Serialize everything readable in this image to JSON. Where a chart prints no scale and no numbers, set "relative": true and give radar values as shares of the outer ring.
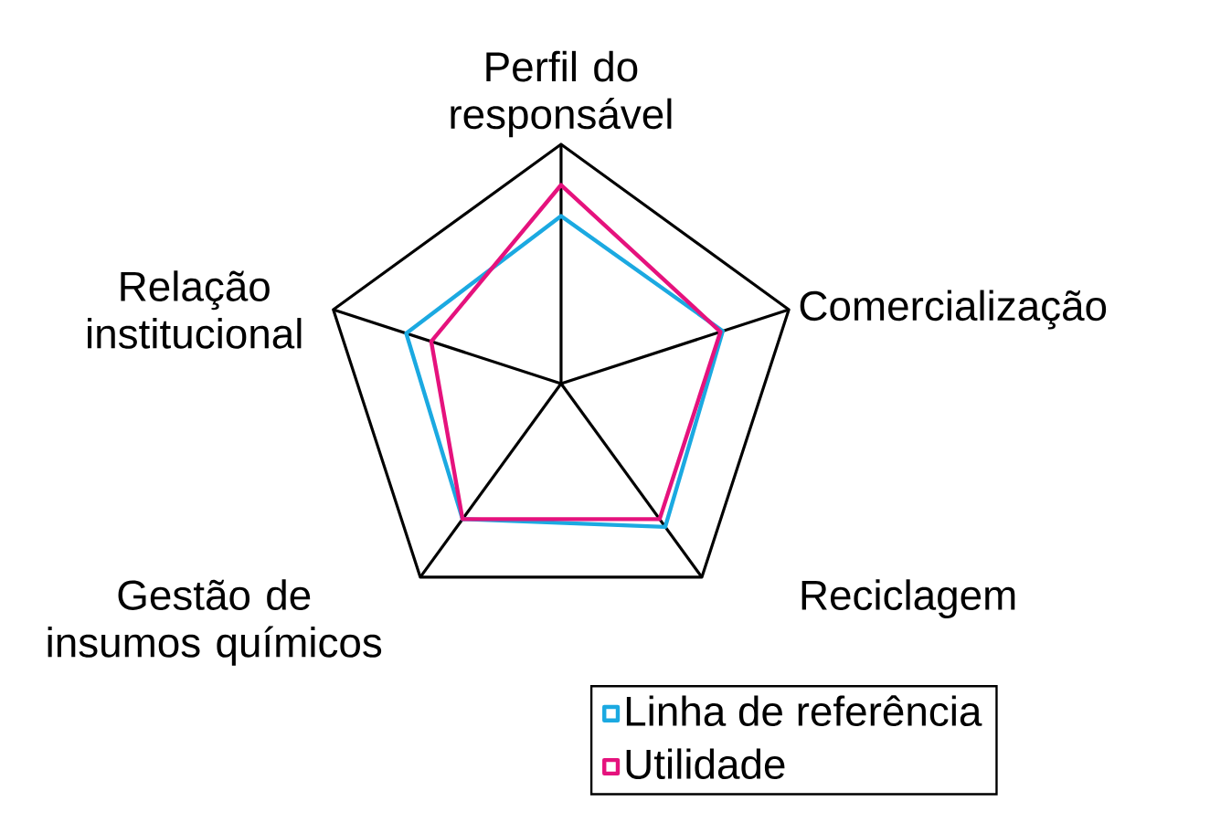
{
  "chart_data": {
    "type": "radar",
    "relative": true,
    "categories": [
      "Perfil do responsável",
      "Comercialização",
      "Reciclagem",
      "Gestão de insumos químicos",
      "Relação institucional"
    ],
    "series": [
      {
        "name": "Linha de referência",
        "color": "#1ba9e1",
        "values": [
          0.7,
          0.71,
          0.74,
          0.7,
          0.68
        ]
      },
      {
        "name": "Utilidade",
        "color": "#e5127d",
        "values": [
          0.83,
          0.7,
          0.7,
          0.7,
          0.57
        ]
      }
    ],
    "legend": "bottom right",
    "marker": "none",
    "line_style": "solid"
  }
}
